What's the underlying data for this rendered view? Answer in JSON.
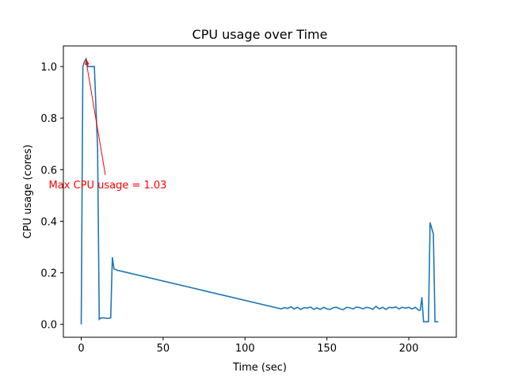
{
  "chart_data": {
    "type": "line",
    "title": "CPU usage over Time",
    "x_label": "Time (sec)",
    "y_label": "CPU usage (cores)",
    "x": [
      0,
      1,
      2,
      3,
      4,
      6,
      8,
      10,
      11,
      12,
      14,
      16,
      18,
      19,
      20,
      22,
      122,
      124,
      126,
      128,
      130,
      132,
      134,
      136,
      138,
      140,
      142,
      144,
      146,
      148,
      150,
      152,
      154,
      156,
      158,
      160,
      162,
      164,
      166,
      168,
      170,
      172,
      174,
      176,
      178,
      180,
      182,
      184,
      186,
      188,
      190,
      192,
      194,
      196,
      198,
      200,
      202,
      204,
      206,
      207,
      208,
      209,
      212,
      213,
      215,
      216,
      218
    ],
    "series": [
      {
        "name": "CPU usage",
        "color": "#1f77b4",
        "values": [
          0,
          1.0,
          1.02,
          1.03,
          1.0,
          1.0,
          1.0,
          0.68,
          0.02,
          0.025,
          0.025,
          0.023,
          0.025,
          0.26,
          0.215,
          0.21,
          0.06,
          0.065,
          0.062,
          0.068,
          0.06,
          0.066,
          0.058,
          0.065,
          0.063,
          0.067,
          0.058,
          0.064,
          0.058,
          0.066,
          0.06,
          0.058,
          0.065,
          0.066,
          0.06,
          0.057,
          0.066,
          0.064,
          0.06,
          0.067,
          0.065,
          0.06,
          0.066,
          0.064,
          0.058,
          0.07,
          0.06,
          0.066,
          0.058,
          0.066,
          0.064,
          0.068,
          0.06,
          0.066,
          0.063,
          0.066,
          0.06,
          0.066,
          0.055,
          0.055,
          0.105,
          0.01,
          0.01,
          0.395,
          0.35,
          0.01,
          0.01
        ]
      }
    ],
    "xlim": [
      -10.9,
      229
    ],
    "ylim": [
      -0.05,
      1.08
    ],
    "xticks": [
      0,
      50,
      100,
      150,
      200
    ],
    "yticks": [
      {
        "value": 0,
        "label": "0.0"
      },
      0.2,
      0.4,
      0.6,
      0.8,
      {
        "value": 1,
        "label": "1.0"
      }
    ],
    "annotation": {
      "text": "Max CPU usage = 1.03",
      "color": "#ff0000"
    }
  }
}
